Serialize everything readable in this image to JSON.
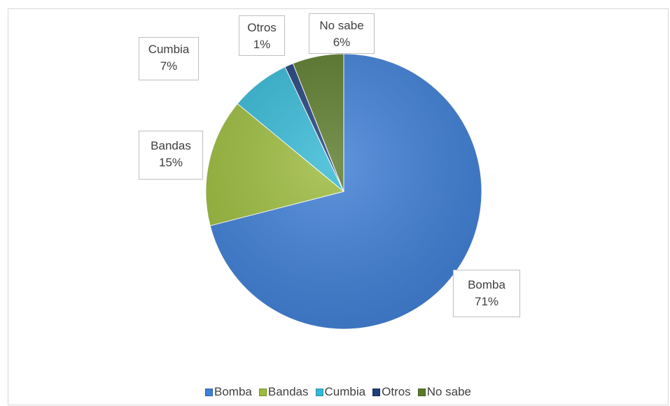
{
  "chart_data": {
    "type": "pie",
    "title": "",
    "categories": [
      "Bomba",
      "Bandas",
      "Cumbia",
      "Otros",
      "No sabe"
    ],
    "values": [
      71,
      15,
      7,
      1,
      6
    ],
    "labels": [
      "71%",
      "15%",
      "7%",
      "1%",
      "6%"
    ],
    "colors": [
      "#3f7fd6",
      "#9bbb3c",
      "#34b8d4",
      "#1f3f7a",
      "#5a7a2a"
    ],
    "legend_position": "bottom",
    "start_angle": "12 o'clock",
    "direction": "clockwise"
  },
  "legend": {
    "items": [
      {
        "label": "Bomba",
        "color": "#3f7fd6"
      },
      {
        "label": "Bandas",
        "color": "#9bbb3c"
      },
      {
        "label": "Cumbia",
        "color": "#34b8d4"
      },
      {
        "label": "Otros",
        "color": "#1f3f7a"
      },
      {
        "label": "No sabe",
        "color": "#5a7a2a"
      }
    ]
  }
}
